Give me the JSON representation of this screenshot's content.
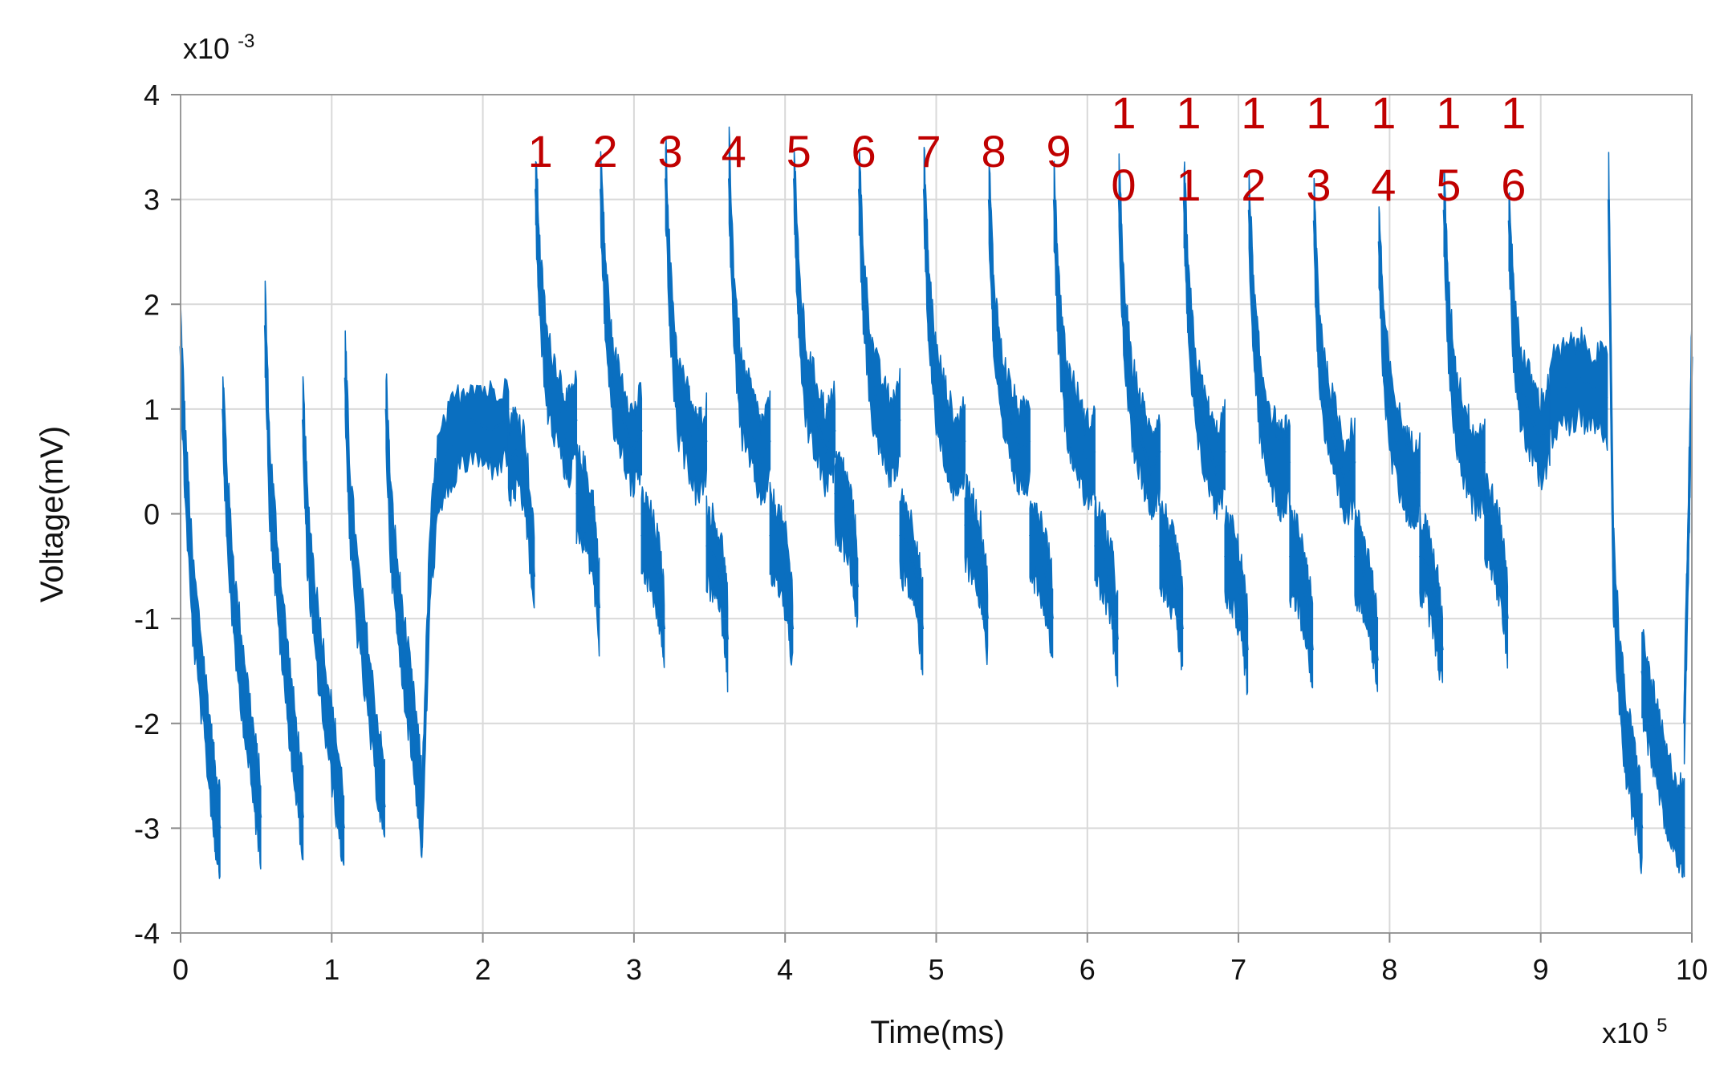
{
  "chart_data": {
    "type": "line",
    "xlabel": "Time(ms)",
    "ylabel": "Voltage(mV)",
    "x_multiplier": {
      "base": "x10",
      "exp": "5"
    },
    "y_multiplier": {
      "base": "x10",
      "exp": "-3"
    },
    "xlim": [
      0,
      10
    ],
    "ylim": [
      -4,
      4
    ],
    "x_ticks": [
      "0",
      "1",
      "2",
      "3",
      "4",
      "5",
      "6",
      "7",
      "8",
      "9",
      "10"
    ],
    "y_ticks": [
      "4",
      "3",
      "2",
      "1",
      "0",
      "-1",
      "-2",
      "-3",
      "-4"
    ],
    "grid": true,
    "color": "#0a6fc0",
    "annotation_color": "#c00000",
    "segments": [
      {
        "x": [
          0.0,
          0.03,
          0.08,
          0.15,
          0.2,
          0.23,
          0.26
        ],
        "y": [
          1.6,
          0.5,
          -0.8,
          -1.7,
          -2.4,
          -2.8,
          -3.0
        ]
      },
      {
        "x": [
          0.28,
          0.31,
          0.36,
          0.43,
          0.49,
          0.53
        ],
        "y": [
          1.0,
          0.0,
          -1.0,
          -1.8,
          -2.5,
          -2.9
        ]
      },
      {
        "x": [
          0.56,
          0.59,
          0.64,
          0.7,
          0.76,
          0.81
        ],
        "y": [
          1.8,
          0.3,
          -0.6,
          -1.5,
          -2.3,
          -2.9
        ]
      },
      {
        "x": [
          0.81,
          0.84,
          0.89,
          0.96,
          1.03,
          1.08
        ],
        "y": [
          0.9,
          -0.2,
          -1.0,
          -1.8,
          -2.5,
          -3.0
        ]
      },
      {
        "x": [
          1.09,
          1.12,
          1.17,
          1.24,
          1.3,
          1.35
        ],
        "y": [
          1.3,
          0.1,
          -0.8,
          -1.6,
          -2.3,
          -2.8
        ]
      },
      {
        "x": [
          1.36,
          1.39,
          1.44,
          1.5,
          1.56,
          1.6
        ],
        "y": [
          1.0,
          -0.1,
          -0.9,
          -1.6,
          -2.3,
          -2.9
        ]
      },
      {
        "x": [
          1.6,
          1.65,
          1.7,
          1.8,
          1.92,
          2.05,
          2.17
        ],
        "y": [
          -2.8,
          -0.5,
          0.3,
          0.7,
          0.9,
          0.8,
          0.9
        ]
      },
      {
        "x": [
          2.17,
          2.22,
          2.28,
          2.34
        ],
        "y": [
          0.5,
          0.6,
          0.4,
          -0.6
        ]
      },
      {
        "x": [
          2.35,
          2.38,
          2.43,
          2.5,
          2.56,
          2.62
        ],
        "y": [
          3.1,
          2.1,
          1.3,
          1.0,
          0.7,
          0.9
        ]
      },
      {
        "x": [
          2.62,
          2.67,
          2.73,
          2.77
        ],
        "y": [
          0.2,
          0.1,
          -0.2,
          -0.9
        ]
      },
      {
        "x": [
          2.78,
          2.81,
          2.86,
          2.93,
          2.99,
          3.05
        ],
        "y": [
          3.1,
          2.1,
          1.2,
          0.9,
          0.6,
          0.8
        ]
      },
      {
        "x": [
          3.05,
          3.1,
          3.16,
          3.2
        ],
        "y": [
          -0.2,
          -0.3,
          -0.6,
          -1.1
        ]
      },
      {
        "x": [
          3.21,
          3.24,
          3.29,
          3.36,
          3.42,
          3.48
        ],
        "y": [
          3.2,
          2.0,
          1.1,
          0.8,
          0.5,
          0.7
        ]
      },
      {
        "x": [
          3.48,
          3.53,
          3.59,
          3.62
        ],
        "y": [
          -0.3,
          -0.4,
          -0.7,
          -1.2
        ]
      },
      {
        "x": [
          3.63,
          3.66,
          3.71,
          3.78,
          3.84,
          3.9
        ],
        "y": [
          3.2,
          2.0,
          1.1,
          0.8,
          0.5,
          0.7
        ]
      },
      {
        "x": [
          3.9,
          3.95,
          4.01,
          4.05
        ],
        "y": [
          -0.2,
          -0.3,
          -0.6,
          -1.1
        ]
      },
      {
        "x": [
          4.06,
          4.09,
          4.14,
          4.21,
          4.27,
          4.33
        ],
        "y": [
          3.2,
          2.0,
          1.2,
          0.9,
          0.6,
          0.8
        ]
      },
      {
        "x": [
          4.33,
          4.38,
          4.44,
          4.48
        ],
        "y": [
          0.2,
          0.1,
          -0.2,
          -0.7
        ]
      },
      {
        "x": [
          4.49,
          4.52,
          4.57,
          4.64,
          4.7,
          4.76
        ],
        "y": [
          3.1,
          2.1,
          1.3,
          0.9,
          0.7,
          0.9
        ]
      },
      {
        "x": [
          4.76,
          4.81,
          4.87,
          4.91
        ],
        "y": [
          -0.2,
          -0.3,
          -0.6,
          -1.1
        ]
      },
      {
        "x": [
          4.92,
          4.95,
          5.0,
          5.07,
          5.13,
          5.19
        ],
        "y": [
          3.1,
          2.0,
          1.2,
          0.8,
          0.5,
          0.7
        ]
      },
      {
        "x": [
          5.19,
          5.24,
          5.3,
          5.34
        ],
        "y": [
          -0.1,
          -0.2,
          -0.5,
          -1.0
        ]
      },
      {
        "x": [
          5.35,
          5.38,
          5.43,
          5.5,
          5.56,
          5.62
        ],
        "y": [
          3.0,
          1.9,
          1.2,
          0.8,
          0.6,
          0.7
        ]
      },
      {
        "x": [
          5.62,
          5.67,
          5.73,
          5.77
        ],
        "y": [
          -0.2,
          -0.3,
          -0.6,
          -1.0
        ]
      },
      {
        "x": [
          5.78,
          5.81,
          5.86,
          5.93,
          5.99,
          6.05
        ],
        "y": [
          3.0,
          1.9,
          1.1,
          0.8,
          0.5,
          0.6
        ]
      },
      {
        "x": [
          6.05,
          6.1,
          6.16,
          6.2
        ],
        "y": [
          -0.3,
          -0.4,
          -0.7,
          -1.2
        ]
      },
      {
        "x": [
          6.21,
          6.24,
          6.29,
          6.36,
          6.42,
          6.48
        ],
        "y": [
          3.0,
          1.9,
          1.1,
          0.7,
          0.4,
          0.6
        ]
      },
      {
        "x": [
          6.48,
          6.53,
          6.59,
          6.63
        ],
        "y": [
          -0.3,
          -0.4,
          -0.7,
          -1.1
        ]
      },
      {
        "x": [
          6.64,
          6.67,
          6.72,
          6.79,
          6.85,
          6.91
        ],
        "y": [
          3.0,
          1.9,
          1.1,
          0.7,
          0.4,
          0.6
        ]
      },
      {
        "x": [
          6.91,
          6.96,
          7.02,
          7.06
        ],
        "y": [
          -0.4,
          -0.5,
          -0.8,
          -1.3
        ]
      },
      {
        "x": [
          7.07,
          7.1,
          7.15,
          7.22,
          7.28,
          7.34
        ],
        "y": [
          2.9,
          1.8,
          1.0,
          0.6,
          0.4,
          0.5
        ]
      },
      {
        "x": [
          7.34,
          7.39,
          7.45,
          7.49
        ],
        "y": [
          -0.4,
          -0.5,
          -0.8,
          -1.3
        ]
      },
      {
        "x": [
          7.5,
          7.53,
          7.58,
          7.65,
          7.71,
          7.77
        ],
        "y": [
          2.8,
          1.7,
          1.0,
          0.6,
          0.3,
          0.5
        ]
      },
      {
        "x": [
          7.77,
          7.82,
          7.88,
          7.92
        ],
        "y": [
          -0.4,
          -0.5,
          -0.9,
          -1.4
        ]
      },
      {
        "x": [
          7.93,
          7.96,
          8.01,
          8.08,
          8.14,
          8.2
        ],
        "y": [
          2.6,
          1.6,
          0.9,
          0.5,
          0.3,
          0.4
        ]
      },
      {
        "x": [
          8.2,
          8.25,
          8.31,
          8.35
        ],
        "y": [
          -0.4,
          -0.5,
          -0.9,
          -1.3
        ]
      },
      {
        "x": [
          8.36,
          8.39,
          8.44,
          8.51,
          8.57,
          8.63
        ],
        "y": [
          2.9,
          1.8,
          1.0,
          0.6,
          0.4,
          0.5
        ]
      },
      {
        "x": [
          8.63,
          8.68,
          8.74,
          8.78
        ],
        "y": [
          0.0,
          -0.2,
          -0.5,
          -1.0
        ]
      },
      {
        "x": [
          8.79,
          8.82,
          8.87,
          8.94,
          9.0,
          9.06
        ],
        "y": [
          2.8,
          1.8,
          1.2,
          0.9,
          0.7,
          0.9
        ]
      },
      {
        "x": [
          9.06,
          9.15,
          9.25,
          9.35,
          9.44
        ],
        "y": [
          1.1,
          1.2,
          1.3,
          1.2,
          1.1
        ]
      },
      {
        "x": [
          9.45,
          9.48,
          9.52,
          9.56,
          9.62,
          9.67
        ],
        "y": [
          3.0,
          -0.5,
          -1.5,
          -2.1,
          -2.6,
          -3.0
        ]
      },
      {
        "x": [
          9.67,
          9.72,
          9.78,
          9.84,
          9.9,
          9.95
        ],
        "y": [
          -1.5,
          -1.9,
          -2.3,
          -2.7,
          -2.9,
          -3.0
        ]
      },
      {
        "x": [
          9.95,
          9.98,
          10.0
        ],
        "y": [
          -2.0,
          0.0,
          1.5
        ]
      }
    ],
    "annotations": [
      {
        "x": 2.38,
        "lines": [
          "1"
        ]
      },
      {
        "x": 2.81,
        "lines": [
          "2"
        ]
      },
      {
        "x": 3.24,
        "lines": [
          "3"
        ]
      },
      {
        "x": 3.66,
        "lines": [
          "4"
        ]
      },
      {
        "x": 4.09,
        "lines": [
          "5"
        ]
      },
      {
        "x": 4.52,
        "lines": [
          "6"
        ]
      },
      {
        "x": 4.95,
        "lines": [
          "7"
        ]
      },
      {
        "x": 5.38,
        "lines": [
          "8"
        ]
      },
      {
        "x": 5.81,
        "lines": [
          "9"
        ]
      },
      {
        "x": 6.24,
        "lines": [
          "1",
          "0"
        ]
      },
      {
        "x": 6.67,
        "lines": [
          "1",
          "1"
        ]
      },
      {
        "x": 7.1,
        "lines": [
          "1",
          "2"
        ]
      },
      {
        "x": 7.53,
        "lines": [
          "1",
          "3"
        ]
      },
      {
        "x": 7.96,
        "lines": [
          "1",
          "4"
        ]
      },
      {
        "x": 8.39,
        "lines": [
          "1",
          "5"
        ]
      },
      {
        "x": 8.82,
        "lines": [
          "1",
          "6"
        ]
      }
    ]
  }
}
